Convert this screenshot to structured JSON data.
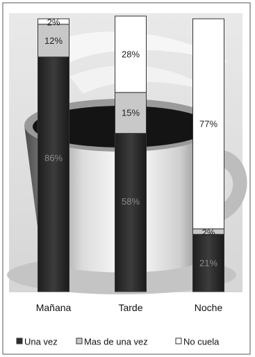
{
  "chart_data": {
    "type": "bar",
    "stacked": true,
    "normalized": true,
    "categories": [
      "Mañana",
      "Tarde",
      "Noche"
    ],
    "series": [
      {
        "name": "Una vez",
        "values": [
          86,
          58,
          21
        ],
        "labels": [
          "86%",
          "58%",
          "21%"
        ],
        "color": "#2e2e2e"
      },
      {
        "name": "Mas de una vez",
        "values": [
          12,
          15,
          2
        ],
        "labels": [
          "12%",
          "15%",
          "2%"
        ],
        "color": "#c8c8c8"
      },
      {
        "name": "No cuela",
        "values": [
          2,
          28,
          77
        ],
        "labels": [
          "2%",
          "28%",
          "77%"
        ],
        "color": "#ffffff"
      }
    ],
    "ylim": [
      0,
      100
    ],
    "grid": false,
    "legend_position": "bottom"
  }
}
